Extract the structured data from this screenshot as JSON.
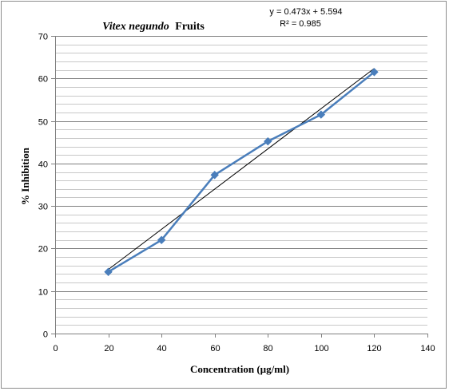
{
  "chart_data": {
    "type": "scatter",
    "title_italic": "Vitex negundo",
    "title_rest": "Fruits",
    "xlabel": "Concentration (µg/ml)",
    "ylabel": "% Inhibition",
    "xlim": [
      0,
      140
    ],
    "ylim": [
      0,
      70
    ],
    "x_ticks": [
      "0",
      "20",
      "40",
      "60",
      "80",
      "100",
      "120",
      "140"
    ],
    "y_ticks": [
      "0",
      "10",
      "20",
      "30",
      "40",
      "50",
      "60",
      "70"
    ],
    "grid": true,
    "minor_grid": true,
    "series": [
      {
        "x": [
          20,
          40,
          60,
          80,
          100,
          120
        ],
        "y": [
          14.5,
          22,
          37.3,
          45.2,
          51.5,
          61.5
        ],
        "color": "#4a7ebb",
        "marker": "diamond"
      }
    ],
    "trendline": {
      "slope": 0.473,
      "intercept": 5.594,
      "color": "#000000",
      "equation": "y = 0.473x + 5.594",
      "r_squared": "R² = 0.985"
    }
  }
}
